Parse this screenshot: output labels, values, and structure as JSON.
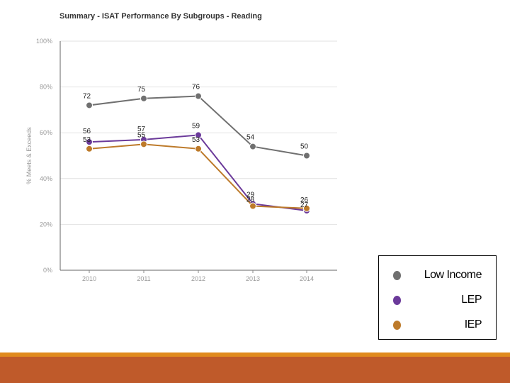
{
  "chart_data": {
    "type": "line",
    "title": "Summary - ISAT Performance By Subgroups - Reading",
    "xlabel": "",
    "ylabel": "% Meets & Exceeds",
    "categories": [
      "2010",
      "2011",
      "2012",
      "2013",
      "2014"
    ],
    "ylim": [
      0,
      100
    ],
    "yticks": [
      0,
      20,
      40,
      60,
      80,
      100
    ],
    "ytick_labels": [
      "0%",
      "20%",
      "40%",
      "60%",
      "80%",
      "100%"
    ],
    "grid": true,
    "legend_position": "bottom-right",
    "series": [
      {
        "name": "Low Income",
        "color": "#707070",
        "values": [
          72,
          75,
          76,
          54,
          50
        ]
      },
      {
        "name": "LEP",
        "color": "#6B3A9A",
        "values": [
          56,
          57,
          59,
          29,
          26
        ]
      },
      {
        "name": "IEP",
        "color": "#BD7A2A",
        "values": [
          53,
          55,
          53,
          28,
          27
        ]
      }
    ]
  }
}
